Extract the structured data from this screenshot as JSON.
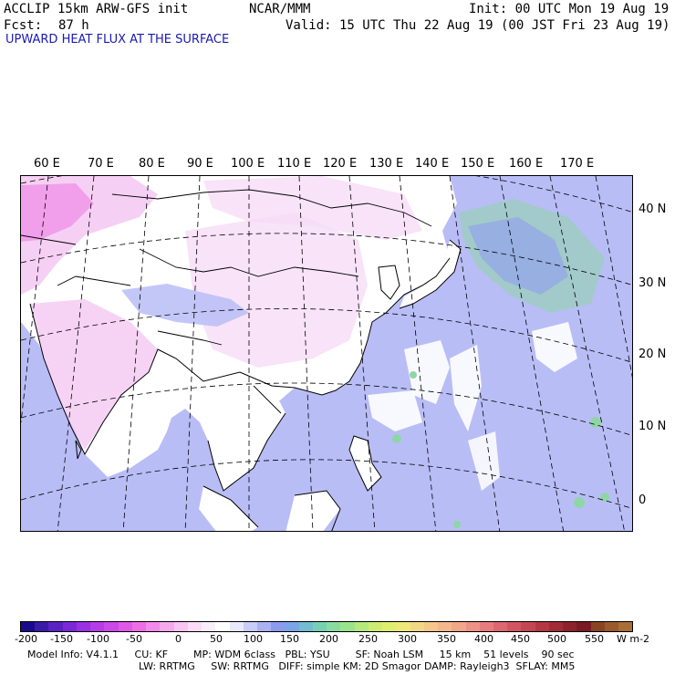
{
  "header": {
    "model": "ACCLIP 15km ARW-GFS init",
    "center": "NCAR/MMM",
    "init": "Init: 00 UTC Mon 19 Aug 19",
    "fcst_label": "Fcst:",
    "fcst_value": "87 h",
    "valid": "Valid: 15 UTC Thu 22 Aug 19 (00 JST Fri 23 Aug 19)",
    "field_title": "UPWARD HEAT FLUX AT THE SURFACE"
  },
  "map": {
    "longitude_labels": [
      "60 E",
      "70 E",
      "80 E",
      "90 E",
      "100 E",
      "110 E",
      "120 E",
      "130 E",
      "140 E",
      "150 E",
      "160 E",
      "170 E"
    ],
    "latitude_labels": [
      "40 N",
      "30 N",
      "20 N",
      "10 N",
      "0"
    ],
    "colors": {
      "land_white": "#ffffff",
      "ocean_low": "#b9bdf6",
      "neg_pink": "#f4c8f2",
      "neg_magenta": "#f08ae6",
      "pos_green": "#8fd6a6",
      "pos_blue": "#8f9cf0"
    }
  },
  "colorbar": {
    "labels": [
      "-200",
      "-150",
      "-100",
      "-50",
      "0",
      "50",
      "100",
      "150",
      "200",
      "250",
      "300",
      "350",
      "400",
      "450",
      "500",
      "550"
    ],
    "units": "W m-2",
    "colors": [
      "#1a0a8c",
      "#3b1aa8",
      "#5a22c4",
      "#7a28d8",
      "#9a30e4",
      "#b63ce8",
      "#cc48e8",
      "#e058e6",
      "#ec6ee6",
      "#f28aea",
      "#f6a8ee",
      "#f8c4f2",
      "#fadcf6",
      "#f6eefa",
      "#ffffff",
      "#e8eafc",
      "#c8ccf8",
      "#aab2f4",
      "#8c9af0",
      "#7aa6e8",
      "#74bcd0",
      "#78d0b4",
      "#88dca0",
      "#9ce48c",
      "#b4ea7c",
      "#cced72",
      "#e0ee70",
      "#eee87a",
      "#f2d884",
      "#f4c88a",
      "#f4b88c",
      "#f2a68a",
      "#ee9286",
      "#e87c7c",
      "#de6870",
      "#d25660",
      "#c44650",
      "#b43842",
      "#a22c36",
      "#8e222c",
      "#7a1a24",
      "#8a4424",
      "#9a5a2c",
      "#a86e36"
    ]
  },
  "footer": {
    "line1": "Model Info: V4.1.1     CU: KF        MP: WDM 6class   PBL: YSU        SF: Noah LSM     15 km    51 levels    90 sec",
    "line2": "LW: RRTMG     SW: RRTMG   DIFF: simple KM: 2D Smagor DAMP: Rayleigh3  SFLAY: MM5"
  }
}
